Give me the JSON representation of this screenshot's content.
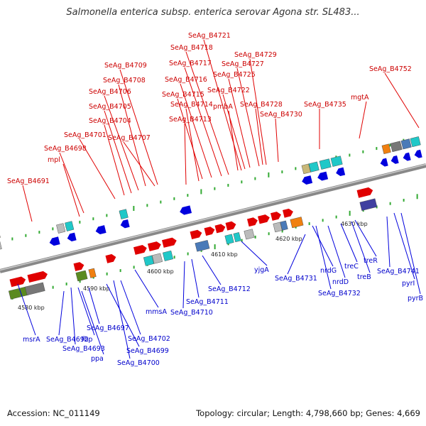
{
  "title": "Salmonella enterica subsp. enterica serovar Agona str. SL483...",
  "footer": {
    "accession": "Accession: NC_011149",
    "summary": "Topology: circular; Length: 4,798,660 bp; Genes: 4,669"
  },
  "colors": {
    "forward": "#e00000",
    "reverse": "#0000dd",
    "backbone": "#888888",
    "tick": "#33aa33",
    "label_forward": "#cc0000",
    "label_reverse": "#0000cc"
  },
  "scale": {
    "tick_labels": [
      "4580 kbp",
      "4590 kbp",
      "4600 kbp",
      "4610 kbp",
      "4620 kbp",
      "4630 kbp"
    ]
  },
  "labels": {
    "forward_strand": [
      "SeAg_B4691",
      "mpl",
      "SeAg_B4698",
      "SeAg_B4701",
      "SeAg_B4704",
      "SeAg_B4705",
      "SeAg_B4706",
      "SeAg_B4707",
      "SeAg_B4708",
      "SeAg_B4709",
      "SeAg_B4713",
      "SeAg_B4714",
      "SeAg_B4715",
      "SeAg_B4716",
      "SeAg_B4717",
      "SeAg_B4718",
      "SeAg_B4721",
      "pmbA",
      "SeAg_B4722",
      "SeAg_B4725",
      "SeAg_B4727",
      "SeAg_B4729",
      "SeAg_B4728",
      "SeAg_B4730",
      "SeAg_B4735",
      "mgtA",
      "SeAg_B4752"
    ],
    "reverse_strand": [
      "msrA",
      "SeAg_B4692",
      "SeAg_B4693",
      "fbp",
      "ppa",
      "SeAg_B4697",
      "SeAg_B4699",
      "SeAg_B4700",
      "SeAg_B4702",
      "mmsA",
      "SeAg_B4710",
      "SeAg_B4711",
      "SeAg_B4712",
      "yjgA",
      "SeAg_B4731",
      "nrdG",
      "SeAg_B4732",
      "nrdD",
      "treC",
      "treB",
      "treR",
      "SeAg_B4741",
      "pyrI",
      "pyrB"
    ]
  }
}
